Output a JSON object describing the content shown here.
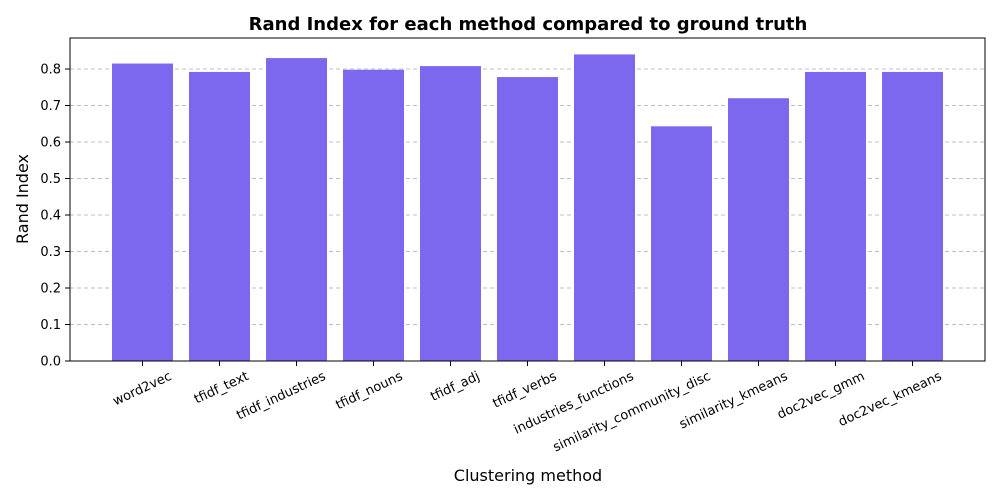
{
  "chart_data": {
    "type": "bar",
    "title": "Rand Index for each method compared to ground truth",
    "xlabel": "Clustering method",
    "ylabel": "Rand Index",
    "categories": [
      "word2vec",
      "tfidf_text",
      "tfidf_industries",
      "tfidf_nouns",
      "tfidf_adj",
      "tfidf_verbs",
      "industries_functions",
      "similarity_community_disc",
      "similarity_kmeans",
      "doc2vec_gmm",
      "doc2vec_kmeans"
    ],
    "values": [
      0.815,
      0.792,
      0.83,
      0.798,
      0.808,
      0.778,
      0.84,
      0.643,
      0.72,
      0.792,
      0.792
    ],
    "ylim": [
      0,
      0.885
    ],
    "yticks": [
      "0.0",
      "0.1",
      "0.2",
      "0.3",
      "0.4",
      "0.5",
      "0.6",
      "0.7",
      "0.8"
    ],
    "grid": "y-dashed",
    "bar_color": "#7B68EE",
    "xtick_rotation_deg": 25
  }
}
